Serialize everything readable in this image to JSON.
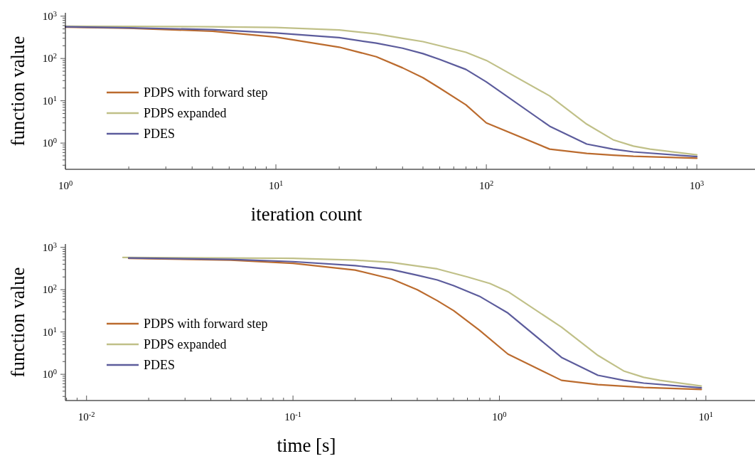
{
  "chart_data": [
    {
      "type": "line",
      "xlabel": "iteration count",
      "ylabel": "function value",
      "log": "xy",
      "legend": "bottom left",
      "grid": false,
      "xlim": [
        1,
        1890
      ],
      "ylim": [
        0.24,
        1200
      ],
      "xticks": [
        {
          "value": 1,
          "label": "10$^{0}$"
        },
        {
          "value": 2,
          "label": null
        },
        {
          "value": 3,
          "label": null
        },
        {
          "value": 4,
          "label": null
        },
        {
          "value": 5,
          "label": null
        },
        {
          "value": 6,
          "label": null
        },
        {
          "value": 7,
          "label": null
        },
        {
          "value": 8,
          "label": null
        },
        {
          "value": 9,
          "label": null
        },
        {
          "value": 10,
          "label": "10$^{1}$"
        },
        {
          "value": 20,
          "label": null
        },
        {
          "value": 30,
          "label": null
        },
        {
          "value": 40,
          "label": null
        },
        {
          "value": 50,
          "label": null
        },
        {
          "value": 60,
          "label": null
        },
        {
          "value": 70,
          "label": null
        },
        {
          "value": 80,
          "label": null
        },
        {
          "value": 90,
          "label": null
        },
        {
          "value": 100,
          "label": "10$^{2}$"
        },
        {
          "value": 200,
          "label": null
        },
        {
          "value": 300,
          "label": null
        },
        {
          "value": 400,
          "label": null
        },
        {
          "value": 500,
          "label": null
        },
        {
          "value": 600,
          "label": null
        },
        {
          "value": 700,
          "label": null
        },
        {
          "value": 800,
          "label": null
        },
        {
          "value": 900,
          "label": null
        },
        {
          "value": 1000,
          "label": "10$^{3}$"
        }
      ],
      "yticks": [
        {
          "value": 0.3,
          "label": null
        },
        {
          "value": 0.4,
          "label": null
        },
        {
          "value": 0.5,
          "label": null
        },
        {
          "value": 0.6,
          "label": null
        },
        {
          "value": 0.7,
          "label": null
        },
        {
          "value": 0.8,
          "label": null
        },
        {
          "value": 0.9,
          "label": null
        },
        {
          "value": 1,
          "label": "10$^{0}$"
        },
        {
          "value": 2,
          "label": null
        },
        {
          "value": 3,
          "label": null
        },
        {
          "value": 4,
          "label": null
        },
        {
          "value": 5,
          "label": null
        },
        {
          "value": 6,
          "label": null
        },
        {
          "value": 7,
          "label": null
        },
        {
          "value": 8,
          "label": null
        },
        {
          "value": 9,
          "label": null
        },
        {
          "value": 10,
          "label": "10$^{1}$"
        },
        {
          "value": 20,
          "label": null
        },
        {
          "value": 30,
          "label": null
        },
        {
          "value": 40,
          "label": null
        },
        {
          "value": 50,
          "label": null
        },
        {
          "value": 60,
          "label": null
        },
        {
          "value": 70,
          "label": null
        },
        {
          "value": 80,
          "label": null
        },
        {
          "value": 90,
          "label": null
        },
        {
          "value": 100,
          "label": "10$^{2}$"
        },
        {
          "value": 200,
          "label": null
        },
        {
          "value": 300,
          "label": null
        },
        {
          "value": 400,
          "label": null
        },
        {
          "value": 500,
          "label": null
        },
        {
          "value": 600,
          "label": null
        },
        {
          "value": 700,
          "label": null
        },
        {
          "value": 800,
          "label": null
        },
        {
          "value": 900,
          "label": null
        },
        {
          "value": 1000,
          "label": "10$^{3}$"
        }
      ],
      "series": [
        {
          "name": "PDPS with forward step",
          "color": "#bb6b2e",
          "x": [
            1,
            2,
            5,
            10,
            20,
            30,
            40,
            50,
            60,
            80,
            100,
            200,
            300,
            400,
            500,
            1000
          ],
          "values": [
            550,
            520,
            440,
            320,
            185,
            110,
            60,
            35,
            20,
            8,
            3,
            0.72,
            0.57,
            0.52,
            0.49,
            0.44
          ]
        },
        {
          "name": "PDPS expanded",
          "color": "#c0c088",
          "x": [
            1,
            2,
            5,
            10,
            20,
            30,
            40,
            50,
            60,
            80,
            100,
            200,
            300,
            400,
            500,
            600,
            1000
          ],
          "values": [
            580,
            575,
            560,
            540,
            470,
            380,
            300,
            250,
            200,
            140,
            90,
            13,
            2.8,
            1.2,
            0.85,
            0.72,
            0.53
          ]
        },
        {
          "name": "PDES",
          "color": "#5c5c9c",
          "x": [
            1,
            2,
            5,
            10,
            20,
            30,
            40,
            50,
            60,
            80,
            100,
            200,
            300,
            400,
            500,
            1000
          ],
          "values": [
            560,
            530,
            480,
            400,
            310,
            230,
            175,
            130,
            95,
            55,
            28,
            2.5,
            0.95,
            0.72,
            0.62,
            0.48
          ]
        }
      ]
    },
    {
      "type": "line",
      "xlabel": "time [s]",
      "ylabel": "function value",
      "log": "xy",
      "legend": "bottom left",
      "grid": false,
      "xlim": [
        0.0079,
        17.3
      ],
      "ylim": [
        0.24,
        1200
      ],
      "xticks": [
        {
          "value": 0.008,
          "label": null
        },
        {
          "value": 0.009,
          "label": null
        },
        {
          "value": 0.01,
          "label": "10$^{-2}$"
        },
        {
          "value": 0.02,
          "label": null
        },
        {
          "value": 0.03,
          "label": null
        },
        {
          "value": 0.04,
          "label": null
        },
        {
          "value": 0.05,
          "label": null
        },
        {
          "value": 0.06,
          "label": null
        },
        {
          "value": 0.07,
          "label": null
        },
        {
          "value": 0.08,
          "label": null
        },
        {
          "value": 0.09,
          "label": null
        },
        {
          "value": 0.1,
          "label": "10$^{-1}$"
        },
        {
          "value": 0.2,
          "label": null
        },
        {
          "value": 0.3,
          "label": null
        },
        {
          "value": 0.4,
          "label": null
        },
        {
          "value": 0.5,
          "label": null
        },
        {
          "value": 0.6,
          "label": null
        },
        {
          "value": 0.7,
          "label": null
        },
        {
          "value": 0.8,
          "label": null
        },
        {
          "value": 0.9,
          "label": null
        },
        {
          "value": 1,
          "label": "10$^{0}$"
        },
        {
          "value": 2,
          "label": null
        },
        {
          "value": 3,
          "label": null
        },
        {
          "value": 4,
          "label": null
        },
        {
          "value": 5,
          "label": null
        },
        {
          "value": 6,
          "label": null
        },
        {
          "value": 7,
          "label": null
        },
        {
          "value": 8,
          "label": null
        },
        {
          "value": 9,
          "label": null
        },
        {
          "value": 10,
          "label": "10$^{1}$"
        }
      ],
      "yticks": [
        {
          "value": 0.3,
          "label": null
        },
        {
          "value": 0.4,
          "label": null
        },
        {
          "value": 0.5,
          "label": null
        },
        {
          "value": 0.6,
          "label": null
        },
        {
          "value": 0.7,
          "label": null
        },
        {
          "value": 0.8,
          "label": null
        },
        {
          "value": 0.9,
          "label": null
        },
        {
          "value": 1,
          "label": "10$^{0}$"
        },
        {
          "value": 2,
          "label": null
        },
        {
          "value": 3,
          "label": null
        },
        {
          "value": 4,
          "label": null
        },
        {
          "value": 5,
          "label": null
        },
        {
          "value": 6,
          "label": null
        },
        {
          "value": 7,
          "label": null
        },
        {
          "value": 8,
          "label": null
        },
        {
          "value": 9,
          "label": null
        },
        {
          "value": 10,
          "label": "10$^{1}$"
        },
        {
          "value": 20,
          "label": null
        },
        {
          "value": 30,
          "label": null
        },
        {
          "value": 40,
          "label": null
        },
        {
          "value": 50,
          "label": null
        },
        {
          "value": 60,
          "label": null
        },
        {
          "value": 70,
          "label": null
        },
        {
          "value": 80,
          "label": null
        },
        {
          "value": 90,
          "label": null
        },
        {
          "value": 100,
          "label": "10$^{2}$"
        },
        {
          "value": 200,
          "label": null
        },
        {
          "value": 300,
          "label": null
        },
        {
          "value": 400,
          "label": null
        },
        {
          "value": 500,
          "label": null
        },
        {
          "value": 600,
          "label": null
        },
        {
          "value": 700,
          "label": null
        },
        {
          "value": 800,
          "label": null
        },
        {
          "value": 900,
          "label": null
        },
        {
          "value": 1000,
          "label": "10$^{3}$"
        }
      ],
      "series": [
        {
          "name": "PDPS with forward step",
          "color": "#bb6b2e",
          "x": [
            0.016,
            0.05,
            0.1,
            0.2,
            0.3,
            0.4,
            0.5,
            0.6,
            0.8,
            1.1,
            2,
            3,
            5,
            9.5
          ],
          "values": [
            550,
            500,
            420,
            290,
            180,
            100,
            55,
            32,
            11,
            3,
            0.72,
            0.57,
            0.49,
            0.44
          ]
        },
        {
          "name": "PDPS expanded",
          "color": "#c0c088",
          "x": [
            0.015,
            0.1,
            0.2,
            0.3,
            0.5,
            0.7,
            0.9,
            1.1,
            2,
            3,
            4,
            5,
            6,
            9.5
          ],
          "values": [
            580,
            550,
            500,
            440,
            310,
            200,
            140,
            90,
            13,
            2.8,
            1.2,
            0.85,
            0.72,
            0.53
          ]
        },
        {
          "name": "PDES",
          "color": "#5c5c9c",
          "x": [
            0.016,
            0.05,
            0.1,
            0.2,
            0.3,
            0.4,
            0.5,
            0.6,
            0.8,
            0.9,
            1.1,
            2,
            3,
            4,
            5,
            9.5
          ],
          "values": [
            560,
            520,
            460,
            370,
            300,
            220,
            170,
            125,
            70,
            50,
            28,
            2.5,
            0.95,
            0.72,
            0.62,
            0.48
          ]
        }
      ]
    }
  ]
}
